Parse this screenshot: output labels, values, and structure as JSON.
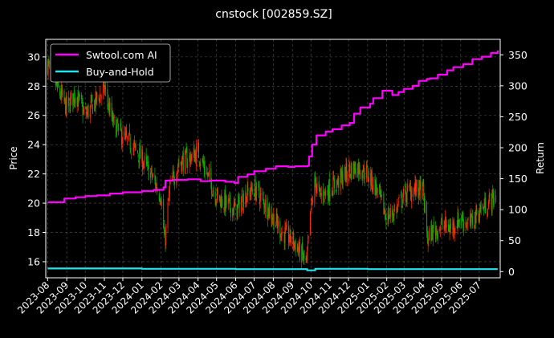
{
  "chart_data": {
    "type": "line",
    "title": "cnstock [002859.SZ]",
    "xlabel": "",
    "ylabel": "Price",
    "y2label": "Return",
    "xlim": [
      "2023-07-29",
      "2025-08-04"
    ],
    "ylim": [
      14.9,
      31.2
    ],
    "y2lim": [
      -10,
      375
    ],
    "grid": true,
    "legend_position": "top-left",
    "x_ticks": [
      "2023-08",
      "2023-09",
      "2023-10",
      "2023-11",
      "2023-12",
      "2024-01",
      "2024-02",
      "2024-03",
      "2024-04",
      "2024-05",
      "2024-06",
      "2024-07",
      "2024-08",
      "2024-09",
      "2024-10",
      "2024-11",
      "2024-12",
      "2025-01",
      "2025-02",
      "2025-03",
      "2025-04",
      "2025-05",
      "2025-06",
      "2025-07"
    ],
    "y_ticks": [
      16,
      18,
      20,
      22,
      24,
      26,
      28,
      30
    ],
    "y2_ticks": [
      0,
      50,
      100,
      150,
      200,
      250,
      300,
      350
    ],
    "colors": {
      "background": "#000000",
      "grid": "#555555",
      "up_candle": "#ff2a00",
      "down_candle": "#00b400",
      "strategy": "#ff00ff",
      "buy_hold": "#22e5ee"
    },
    "price_series": {
      "name": "Price",
      "x": [
        "2023-08-01",
        "2023-08-15",
        "2023-09-01",
        "2023-09-15",
        "2023-10-01",
        "2023-10-15",
        "2023-11-01",
        "2023-11-15",
        "2023-12-01",
        "2023-12-15",
        "2024-01-01",
        "2024-01-15",
        "2024-02-01",
        "2024-02-07",
        "2024-02-15",
        "2024-03-01",
        "2024-03-15",
        "2024-04-01",
        "2024-04-15",
        "2024-05-01",
        "2024-05-15",
        "2024-06-01",
        "2024-06-15",
        "2024-07-01",
        "2024-07-15",
        "2024-08-01",
        "2024-08-15",
        "2024-09-01",
        "2024-09-15",
        "2024-09-24",
        "2024-10-01",
        "2024-10-08",
        "2024-10-15",
        "2024-11-01",
        "2024-11-15",
        "2024-12-01",
        "2024-12-15",
        "2025-01-01",
        "2025-01-15",
        "2025-02-01",
        "2025-02-15",
        "2025-03-01",
        "2025-03-15",
        "2025-04-01",
        "2025-04-08",
        "2025-04-15",
        "2025-05-01",
        "2025-05-15",
        "2025-06-01",
        "2025-06-15",
        "2025-07-01",
        "2025-07-15",
        "2025-07-28"
      ],
      "values": [
        29.5,
        28.0,
        26.5,
        27.5,
        26.0,
        26.8,
        27.8,
        25.5,
        24.5,
        24.0,
        23.0,
        22.0,
        20.5,
        17.2,
        21.0,
        22.8,
        23.0,
        23.5,
        22.0,
        20.5,
        20.0,
        19.5,
        20.5,
        21.0,
        20.2,
        19.0,
        18.0,
        17.5,
        16.5,
        15.8,
        19.5,
        21.5,
        20.5,
        21.0,
        21.5,
        22.2,
        22.5,
        22.0,
        21.0,
        19.0,
        19.5,
        20.5,
        21.0,
        20.8,
        17.5,
        18.0,
        18.5,
        18.3,
        19.0,
        18.5,
        19.5,
        20.0,
        20.5
      ]
    },
    "series": [
      {
        "name": "Swtool.com AI",
        "x": [
          "2023-08-01",
          "2023-08-20",
          "2023-08-28",
          "2023-09-15",
          "2023-10-01",
          "2023-10-20",
          "2023-11-10",
          "2023-12-01",
          "2024-01-01",
          "2024-01-20",
          "2024-02-05",
          "2024-02-08",
          "2024-02-20",
          "2024-03-15",
          "2024-04-05",
          "2024-04-20",
          "2024-05-15",
          "2024-05-30",
          "2024-06-05",
          "2024-06-20",
          "2024-07-01",
          "2024-07-20",
          "2024-08-05",
          "2024-08-25",
          "2024-09-05",
          "2024-09-26",
          "2024-09-28",
          "2024-10-03",
          "2024-10-10",
          "2024-10-25",
          "2024-11-05",
          "2024-11-20",
          "2024-12-03",
          "2024-12-10",
          "2024-12-20",
          "2025-01-05",
          "2025-01-10",
          "2025-01-25",
          "2025-02-10",
          "2025-02-20",
          "2025-03-01",
          "2025-03-15",
          "2025-03-25",
          "2025-04-07",
          "2025-04-12",
          "2025-04-25",
          "2025-05-10",
          "2025-05-20",
          "2025-06-05",
          "2025-06-20",
          "2025-07-05",
          "2025-07-20",
          "2025-07-31"
        ],
        "values": [
          112,
          112,
          118,
          120,
          122,
          123,
          126,
          128,
          130,
          132,
          136,
          147,
          148,
          149,
          146,
          147,
          145,
          143,
          153,
          157,
          162,
          166,
          170,
          169,
          170,
          171,
          186,
          205,
          220,
          226,
          230,
          236,
          240,
          255,
          265,
          271,
          280,
          292,
          285,
          290,
          295,
          300,
          308,
          311,
          312,
          318,
          325,
          330,
          335,
          343,
          347,
          353,
          357
        ]
      },
      {
        "name": "Buy-and-Hold",
        "x": [
          "2023-08-01",
          "2024-01-01",
          "2024-06-01",
          "2024-09-25",
          "2024-10-08",
          "2025-01-01",
          "2025-07-31"
        ],
        "values": [
          5,
          4.5,
          4,
          2,
          4.5,
          4,
          4
        ]
      }
    ]
  }
}
